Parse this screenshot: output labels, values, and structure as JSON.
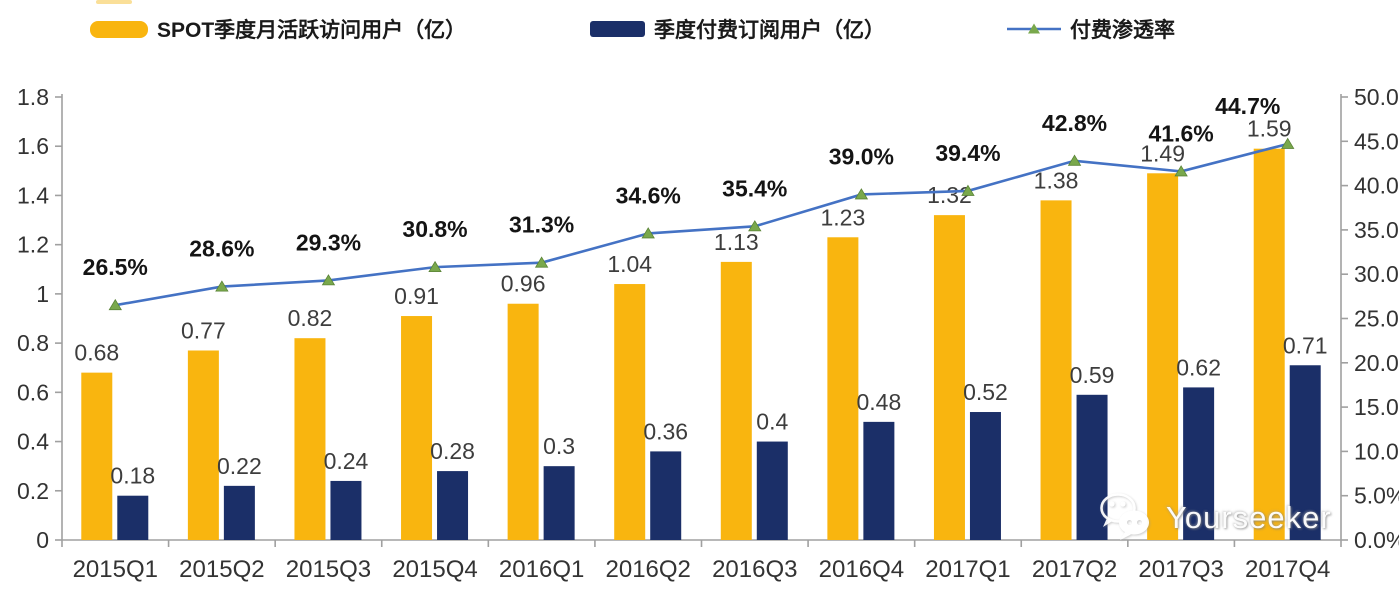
{
  "legend": {
    "items": [
      {
        "label": "SPOT季度月活跃访问用户（亿）",
        "type": "bar",
        "color": "#F9B50F"
      },
      {
        "label": "季度付费订阅用户（亿）",
        "type": "bar",
        "color": "#1B2F68"
      },
      {
        "label": "付费渗透率",
        "type": "line",
        "color": "#4472C4",
        "marker_color": "#79A84C"
      }
    ]
  },
  "watermark": {
    "text": "Yourseeker",
    "icon": "wechat-icon"
  },
  "colors": {
    "mau_bar": "#F9B50F",
    "sub_bar": "#1B2F68",
    "penetration_line": "#4472C4",
    "marker_green": "#79A84C",
    "axis": "#A0A0A0",
    "tick_text": "#333333",
    "value_label": "#3D3D3D",
    "pct_label": "#141414"
  },
  "chart_data": {
    "type": "bar",
    "subtype": "dual-axis bar + line combo",
    "grid": false,
    "legend_position": "top",
    "categories": [
      "2015Q1",
      "2015Q2",
      "2015Q3",
      "2015Q4",
      "2016Q1",
      "2016Q2",
      "2016Q3",
      "2016Q4",
      "2017Q1",
      "2017Q2",
      "2017Q3",
      "2017Q4"
    ],
    "series": [
      {
        "name": "SPOT季度月活跃访问用户（亿）",
        "type": "bar",
        "axis": "left",
        "color": "#F9B50F",
        "values": [
          0.68,
          0.77,
          0.82,
          0.91,
          0.96,
          1.04,
          1.13,
          1.23,
          1.32,
          1.38,
          1.49,
          1.59
        ],
        "labels": [
          "0.68",
          "0.77",
          "0.82",
          "0.91",
          "0.96",
          "1.04",
          "1.13",
          "1.23",
          "1.32",
          "1.38",
          "1.49",
          "1.59"
        ]
      },
      {
        "name": "季度付费订阅用户（亿）",
        "type": "bar",
        "axis": "left",
        "color": "#1B2F68",
        "values": [
          0.18,
          0.22,
          0.24,
          0.28,
          0.3,
          0.36,
          0.4,
          0.48,
          0.52,
          0.59,
          0.62,
          0.71
        ],
        "labels": [
          "0.18",
          "0.22",
          "0.24",
          "0.28",
          "0.3",
          "0.36",
          "0.4",
          "0.48",
          "0.52",
          "0.59",
          "0.62",
          "0.71"
        ]
      },
      {
        "name": "付费渗透率",
        "type": "line",
        "axis": "right",
        "color": "#4472C4",
        "marker": "triangle",
        "marker_color": "#79A84C",
        "values": [
          26.5,
          28.6,
          29.3,
          30.8,
          31.3,
          34.6,
          35.4,
          39.0,
          39.4,
          42.8,
          41.6,
          44.7
        ],
        "labels": [
          "26.5%",
          "28.6%",
          "29.3%",
          "30.8%",
          "31.3%",
          "34.6%",
          "35.4%",
          "39.0%",
          "39.4%",
          "42.8%",
          "41.6%",
          "44.7%"
        ]
      }
    ],
    "left_axis": {
      "min": 0,
      "max": 1.8,
      "step": 0.2,
      "tick_labels": [
        "0",
        "0.2",
        "0.4",
        "0.6",
        "0.8",
        "1",
        "1.2",
        "1.4",
        "1.6",
        "1.8"
      ]
    },
    "right_axis": {
      "min": 0,
      "max": 50,
      "step": 5,
      "tick_labels": [
        "0.0%",
        "5.0%",
        "10.0%",
        "15.0%",
        "20.0%",
        "25.0%",
        "30.0%",
        "35.0%",
        "40.0%",
        "45.0%",
        "50.0%"
      ]
    }
  }
}
